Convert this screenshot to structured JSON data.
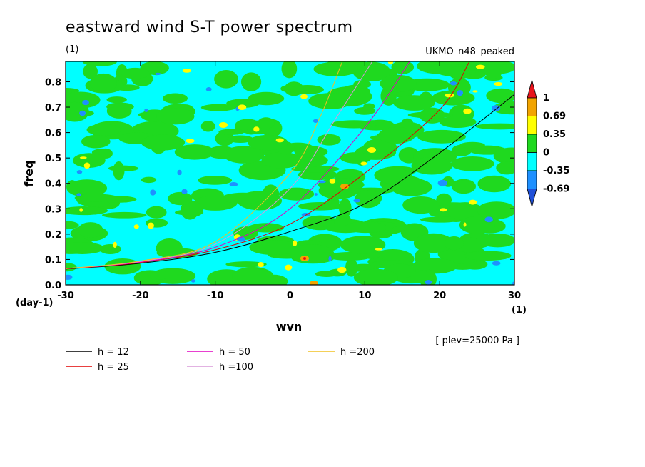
{
  "header": {
    "title": "eastward wind S-T power spectrum",
    "units_label": "(1)",
    "model_label": "UKMO_n48_peaked",
    "level_note": "[ plev=25000 Pa ]"
  },
  "chart_data": {
    "type": "heatmap",
    "title": "eastward wind S-T power spectrum",
    "xlabel": "wvn",
    "ylabel": "freq",
    "x_units": "(1)",
    "y_units": "(day-1)",
    "xlim": [
      -30,
      30
    ],
    "ylim": [
      0,
      0.88
    ],
    "xticks": [
      -30,
      -20,
      -10,
      0,
      10,
      20,
      30
    ],
    "yticks": [
      0.0,
      0.1,
      0.2,
      0.3,
      0.4,
      0.5,
      0.6,
      0.7,
      0.8
    ],
    "colorbar": {
      "levels": [
        "1",
        "0.69",
        "0.35",
        "0",
        "-0.35",
        "-0.69"
      ],
      "colors": [
        "#e8141c",
        "#f2a400",
        "#ffff00",
        "#1fd91f",
        "#00ffff",
        "#1e90ff",
        "#2050d8"
      ]
    },
    "dispersion_curves": [
      {
        "name": "h = 12",
        "color": "#000000",
        "points": [
          [
            -30,
            0.062
          ],
          [
            -20,
            0.085
          ],
          [
            -10,
            0.128
          ],
          [
            0,
            0.21
          ],
          [
            10,
            0.32
          ],
          [
            20,
            0.52
          ],
          [
            30,
            0.75
          ]
        ]
      },
      {
        "name": "h = 25",
        "color": "#e00000",
        "points": [
          [
            -30,
            0.063
          ],
          [
            -20,
            0.088
          ],
          [
            -10,
            0.138
          ],
          [
            0,
            0.24
          ],
          [
            10,
            0.44
          ],
          [
            20,
            0.69
          ],
          [
            24,
            0.88
          ]
        ]
      },
      {
        "name": "h = 50",
        "color": "#e000c0",
        "points": [
          [
            -30,
            0.064
          ],
          [
            -20,
            0.09
          ],
          [
            -10,
            0.148
          ],
          [
            0,
            0.3
          ],
          [
            10,
            0.62
          ],
          [
            16,
            0.88
          ]
        ]
      },
      {
        "name": "h =100",
        "color": "#d898d8",
        "points": [
          [
            -30,
            0.064
          ],
          [
            -20,
            0.092
          ],
          [
            -10,
            0.16
          ],
          [
            0,
            0.38
          ],
          [
            6,
            0.65
          ],
          [
            11,
            0.88
          ]
        ]
      },
      {
        "name": "h =200",
        "color": "#f0c020",
        "points": [
          [
            -30,
            0.064
          ],
          [
            -20,
            0.094
          ],
          [
            -10,
            0.17
          ],
          [
            0,
            0.44
          ],
          [
            4,
            0.66
          ],
          [
            7,
            0.88
          ]
        ]
      }
    ]
  }
}
